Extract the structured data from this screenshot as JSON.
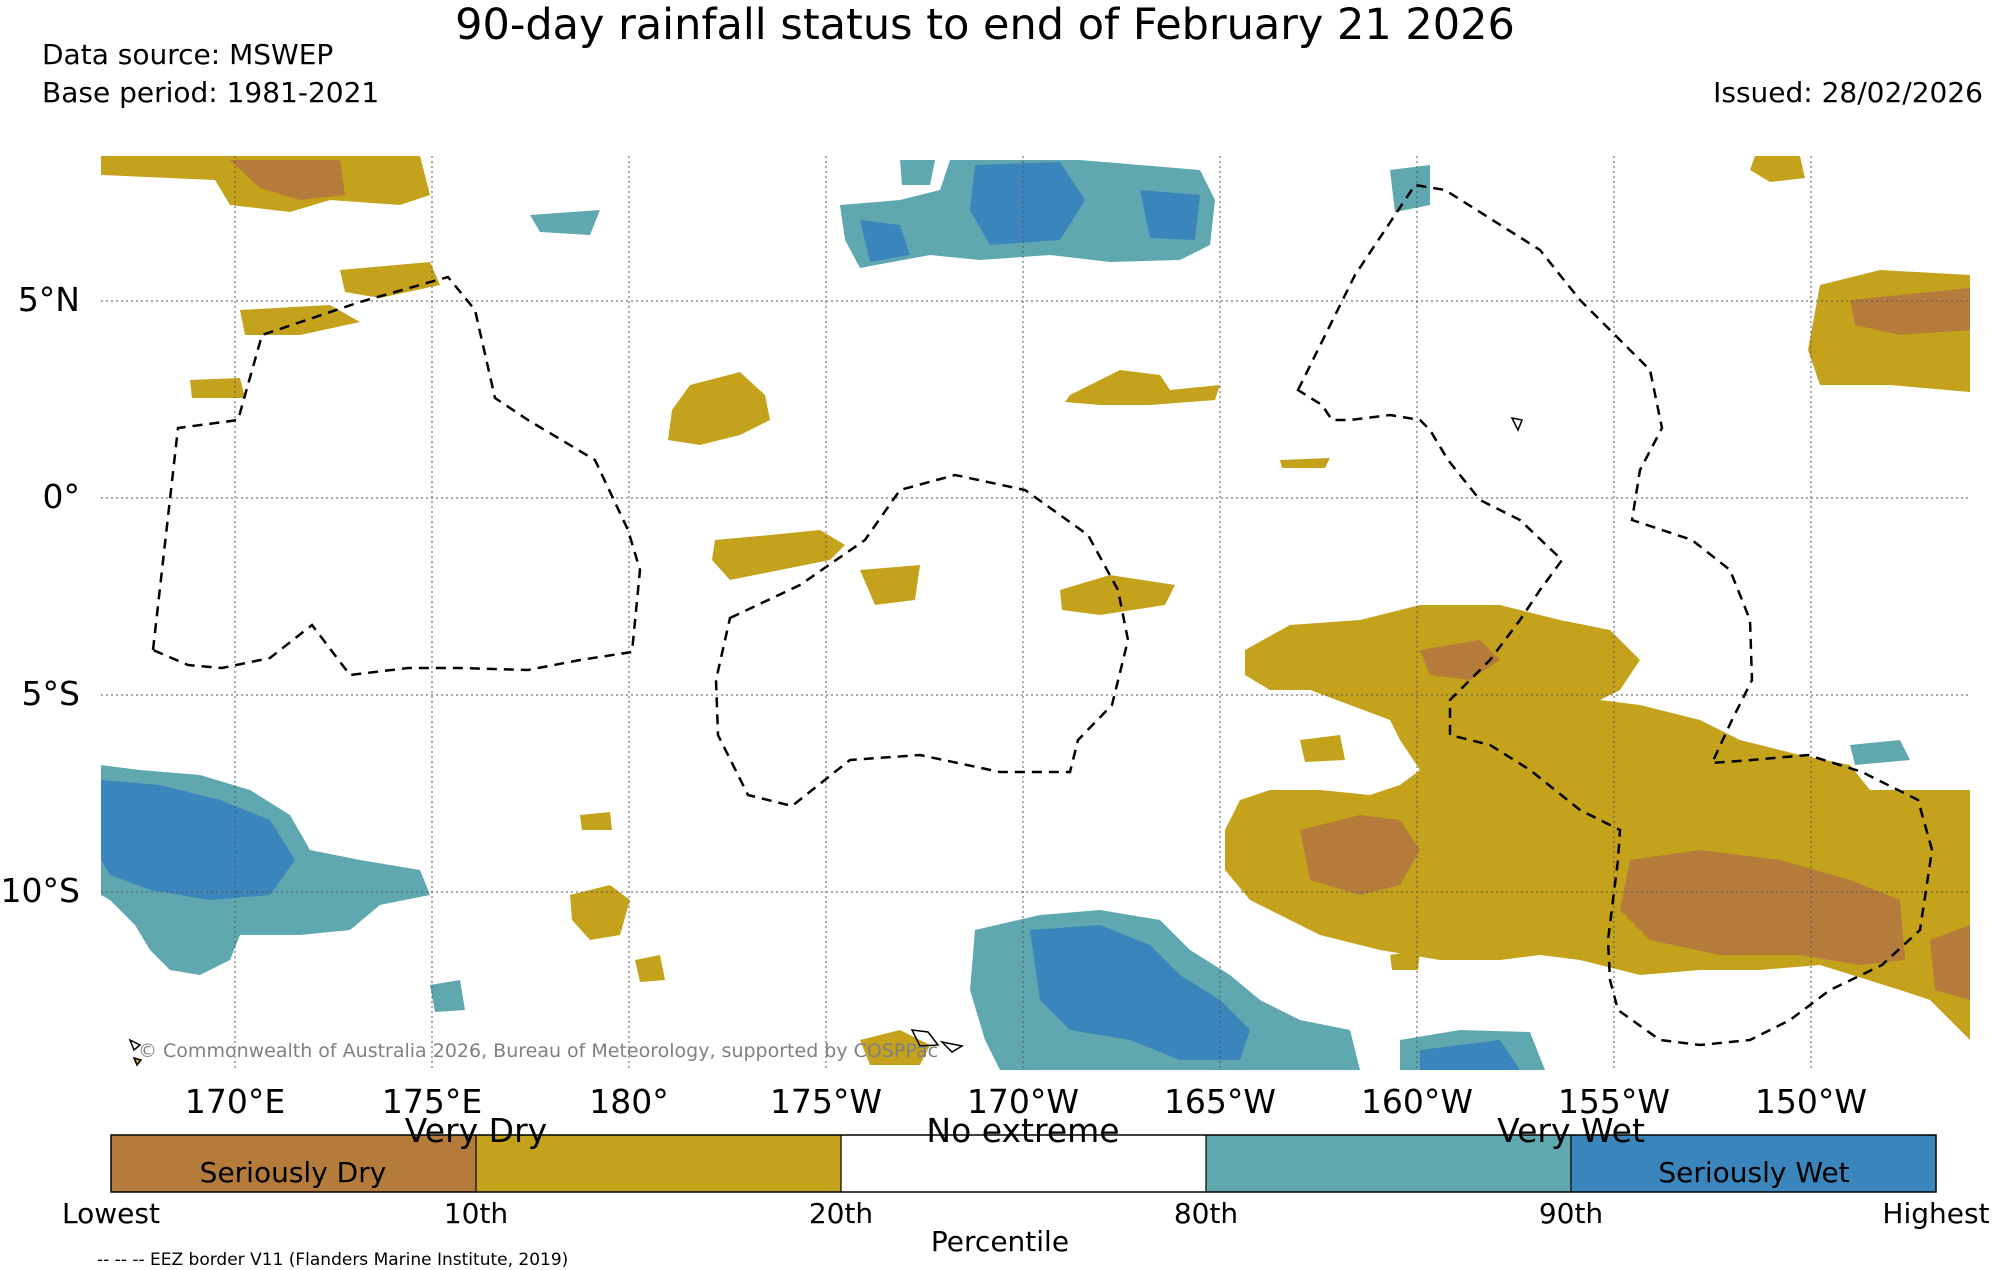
{
  "header": {
    "title": "90-day rainfall status to end of February 21 2026",
    "data_source": "Data source: MSWEP",
    "base_period": "Base period: 1981-2021",
    "issued": "Issued: 28/02/2026"
  },
  "map": {
    "lat_labels": [
      "5°N",
      "0°",
      "5°S",
      "10°S"
    ],
    "lon_labels": [
      "170°E",
      "175°E",
      "180°",
      "175°W",
      "170°W",
      "165°W",
      "160°W",
      "155°W",
      "150°W"
    ],
    "copyright": "© Commonwealth of Australia 2026, Bureau of Meteorology, supported by COSPPac"
  },
  "legend": {
    "categories": [
      "Very Dry",
      "No extreme",
      "Very Wet"
    ],
    "seriously_dry": "Seriously Dry",
    "seriously_wet": "Seriously Wet",
    "percentiles": [
      "Lowest",
      "10th",
      "20th",
      "80th",
      "90th",
      "Highest"
    ],
    "axis_label": "Percentile",
    "colors": {
      "seriously_dry": "#b47b3a",
      "very_dry": "#c4a21b",
      "no_extreme": "#ffffff",
      "very_wet": "#5fa8b0",
      "seriously_wet": "#3a85bc"
    }
  },
  "footer": {
    "eez_note": "-- -- -- EEZ border V11 (Flanders Marine Institute, 2019)"
  }
}
